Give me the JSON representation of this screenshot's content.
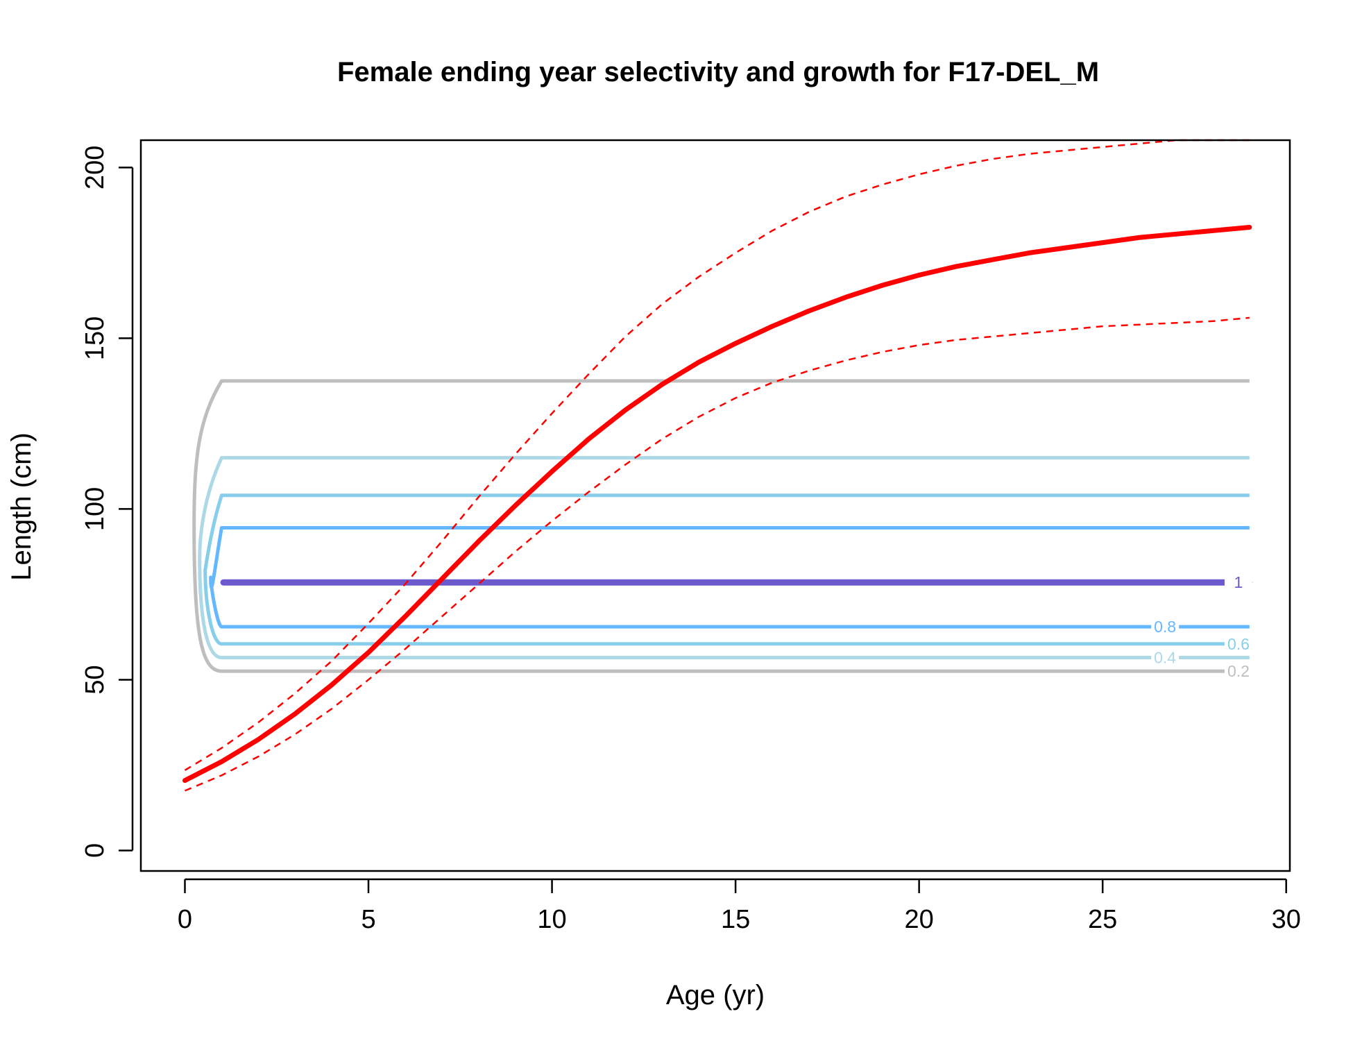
{
  "chart_data": {
    "type": "line",
    "title": "Female ending year selectivity and growth for F17-DEL_M",
    "xlabel": "Age (yr)",
    "ylabel": "Length (cm)",
    "xlim": [
      -1.2,
      30.1
    ],
    "ylim": [
      -6,
      208
    ],
    "xticks": [
      0,
      5,
      10,
      15,
      20,
      25,
      30
    ],
    "yticks": [
      0,
      50,
      100,
      150,
      200
    ],
    "xtick_labels": [
      "0",
      "5",
      "10",
      "15",
      "20",
      "25",
      "30"
    ],
    "ytick_labels": [
      "0",
      "50",
      "100",
      "150",
      "200"
    ],
    "grid": false,
    "growth": {
      "color": "#FF0000",
      "ages": [
        0,
        1,
        2,
        3,
        4,
        5,
        6,
        7,
        8,
        9,
        10,
        11,
        12,
        13,
        14,
        15,
        16,
        17,
        18,
        19,
        20,
        21,
        22,
        23,
        24,
        25,
        26,
        27,
        28,
        29
      ],
      "mean": [
        20.5,
        26,
        32.5,
        40,
        48.5,
        58,
        68.5,
        79.5,
        90.5,
        101,
        111,
        120.5,
        129,
        136.5,
        143,
        148.5,
        153.5,
        158,
        162,
        165.5,
        168.5,
        171,
        173,
        175,
        176.5,
        178,
        179.5,
        180.5,
        181.5,
        182.5
      ],
      "upper": [
        23.5,
        30,
        37.5,
        46,
        55.5,
        66.5,
        78,
        90.5,
        103.5,
        116,
        128,
        139.5,
        150.5,
        160,
        168,
        175,
        181.5,
        187,
        191.5,
        195,
        198,
        200.5,
        202.5,
        204,
        205,
        206,
        207,
        208,
        208,
        208
      ],
      "lower": [
        17.5,
        22,
        27.5,
        34,
        41.5,
        50,
        59,
        68.5,
        78,
        87.5,
        96.5,
        105,
        113,
        120.5,
        127,
        132.5,
        137,
        140.5,
        143.5,
        146,
        148,
        149.5,
        150.5,
        151.5,
        152.5,
        153.5,
        154,
        154.5,
        155,
        156
      ]
    },
    "contours": [
      {
        "level": "0.2",
        "label": "0.2",
        "color": "#BEBEBE",
        "lower": 52.5,
        "upper": 137.5,
        "label_x": 28.7
      },
      {
        "level": "0.4",
        "label": "0.4",
        "color": "#ADD8E6",
        "lower": 56.5,
        "upper": 115,
        "label_x": 26.7
      },
      {
        "level": "0.6",
        "label": "0.6",
        "color": "#87CEEB",
        "lower": 60.5,
        "upper": 104,
        "label_x": 28.7
      },
      {
        "level": "0.8",
        "label": "0.8",
        "color": "#63B8FF",
        "lower": 65.5,
        "upper": 94.5,
        "label_x": 26.7
      },
      {
        "level": "1",
        "label": "1",
        "color": "#6A5ACD",
        "value": 78.5,
        "label_x": 28.7
      }
    ]
  }
}
